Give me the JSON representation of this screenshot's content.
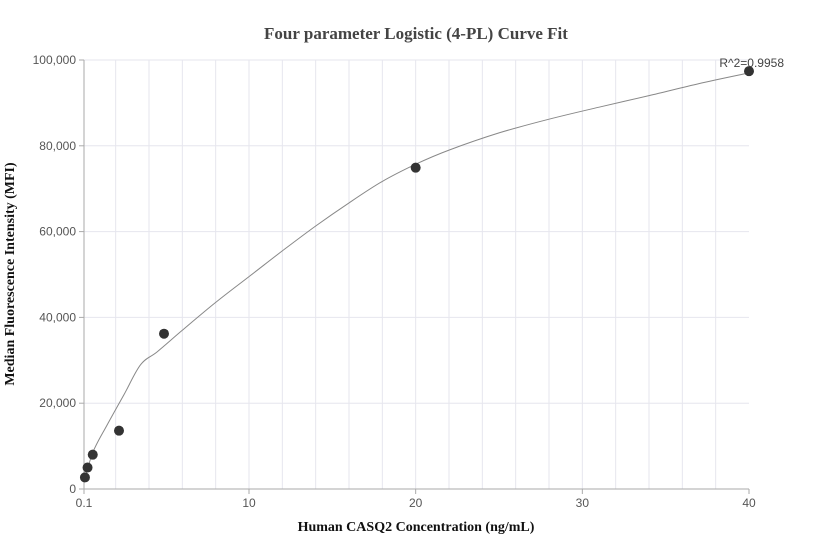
{
  "chart_data": {
    "type": "scatter",
    "title": "Four parameter Logistic (4-PL) Curve Fit",
    "xlabel": "Human CASQ2 Concentration (ng/mL)",
    "ylabel": "Median Fluorescence Intensity (MFI)",
    "xlim": [
      0.1,
      40
    ],
    "ylim": [
      0,
      100000
    ],
    "x_ticks": [
      0.1,
      10,
      20,
      30,
      40
    ],
    "x_tick_labels": [
      "0.1",
      "10",
      "20",
      "30",
      "40"
    ],
    "y_ticks": [
      0,
      20000,
      40000,
      60000,
      80000,
      100000
    ],
    "y_tick_labels": [
      "0",
      "20,000",
      "40,000",
      "60,000",
      "80,000",
      "100,000"
    ],
    "grid": true,
    "points": [
      {
        "x": 0.156,
        "y": 2700
      },
      {
        "x": 0.3125,
        "y": 5000
      },
      {
        "x": 0.625,
        "y": 8000
      },
      {
        "x": 2.2,
        "y": 13600
      },
      {
        "x": 4.9,
        "y": 36200
      },
      {
        "x": 20,
        "y": 74900
      },
      {
        "x": 40,
        "y": 97400
      }
    ],
    "fit_curve": {
      "x": [
        0.1,
        0.625,
        1.5,
        2.5,
        3.5,
        4.5,
        6,
        8,
        10,
        12,
        14,
        16,
        18,
        20,
        22,
        25,
        28,
        31,
        34,
        37,
        40
      ],
      "y": [
        1500,
        8500,
        15000,
        22000,
        29000,
        32000,
        37000,
        43500,
        49500,
        55500,
        61300,
        66700,
        71700,
        75700,
        79000,
        83000,
        86200,
        89000,
        91700,
        94500,
        97000
      ]
    },
    "annotation": "R^2=0.9958",
    "colors": {
      "points": "#333333",
      "curve": "#888888",
      "grid": "#e6e6ee",
      "axis": "#aaaaaa"
    }
  }
}
